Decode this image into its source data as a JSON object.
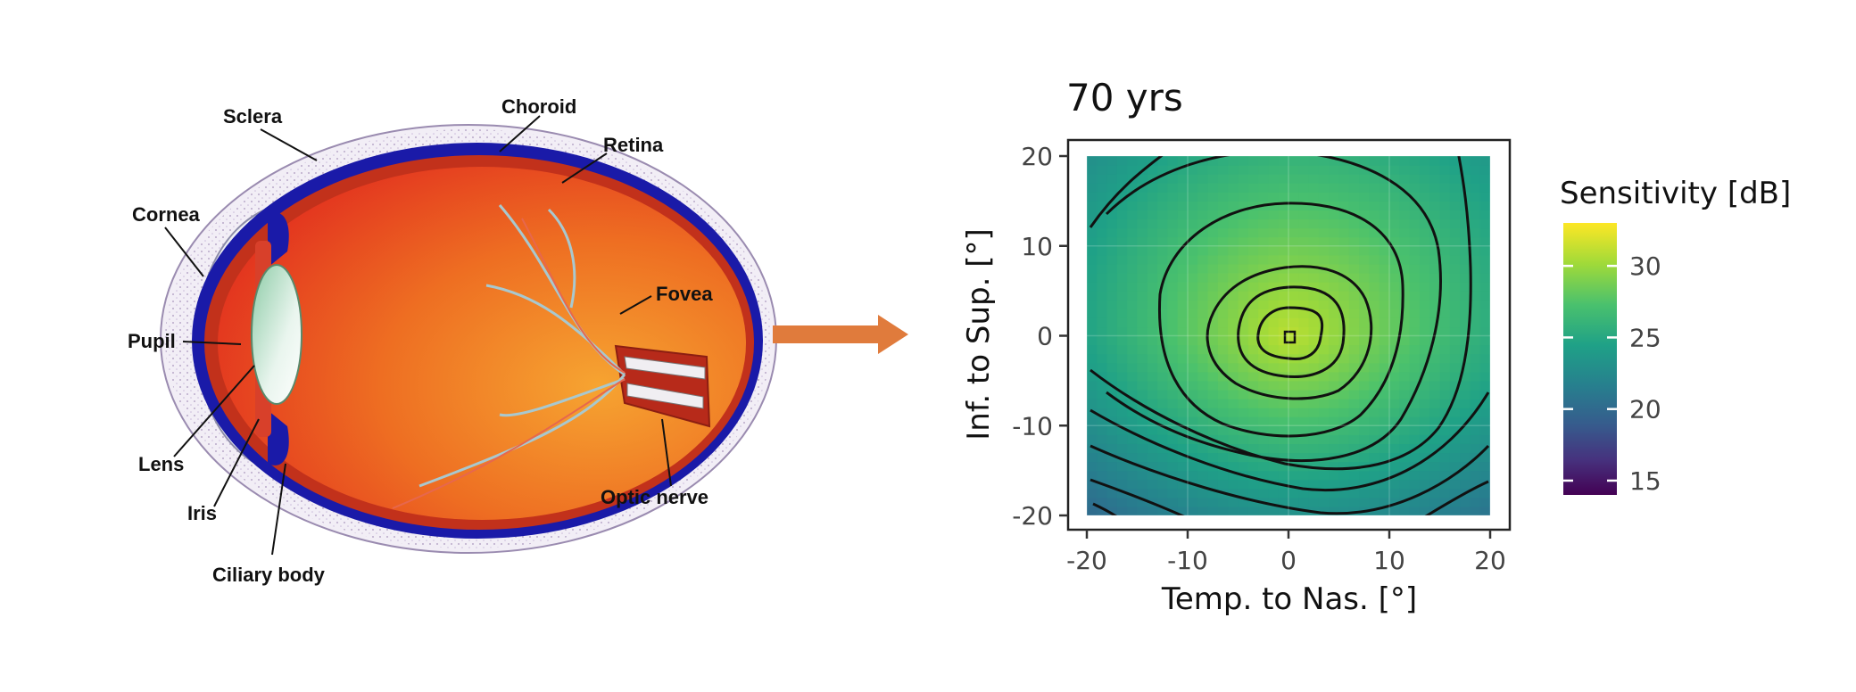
{
  "eye_diagram": {
    "labels": {
      "sclera": "Sclera",
      "choroid": "Choroid",
      "retina": "Retina",
      "cornea": "Cornea",
      "fovea": "Fovea",
      "pupil": "Pupil",
      "lens": "Lens",
      "iris": "Iris",
      "ciliary_body": "Ciliary body",
      "optic_nerve": "Optic nerve"
    },
    "colors": {
      "eyeball": "#e8551f",
      "sclera_blue": "#1414a0",
      "retina_red": "#c0301a",
      "lens": "#9fd3b4",
      "vessels": "#9fc6cf"
    }
  },
  "arrow": {
    "color": "#e07b3c"
  },
  "chart_data": {
    "type": "heatmap",
    "title": "70 yrs",
    "xlabel": "Temp. to Nas. [°]",
    "ylabel": "Inf. to Sup. [°]",
    "xlim": [
      -20,
      20
    ],
    "ylim": [
      -20,
      20
    ],
    "xticks": [
      "-20",
      "-10",
      "0",
      "10",
      "20"
    ],
    "yticks": [
      "20",
      "10",
      "0",
      "-10",
      "-20"
    ],
    "xtick_values": [
      -20,
      -10,
      0,
      10,
      20
    ],
    "ytick_values": [
      20,
      10,
      0,
      -10,
      -20
    ],
    "grid": true,
    "contours": true,
    "peak": {
      "x": 0,
      "y": 0,
      "value": 31
    },
    "colormap": "viridis",
    "legend": {
      "title": "Sensitivity [dB]",
      "placement": "right",
      "range": [
        14,
        33
      ],
      "ticks": [
        "30",
        "25",
        "20",
        "15"
      ],
      "tick_values": [
        30,
        25,
        20,
        15
      ]
    }
  }
}
